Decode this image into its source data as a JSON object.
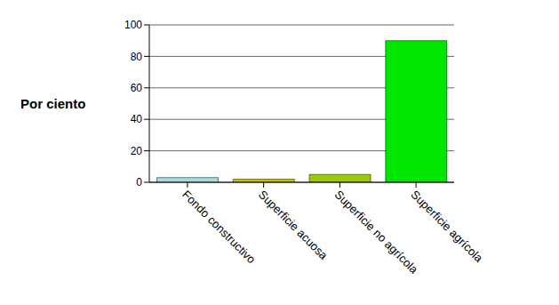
{
  "chart_data": {
    "type": "bar",
    "y_label": "Por ciento",
    "categories": [
      "Fondo constructivo",
      "Superficie acuosa",
      "Superficie no agrícola",
      "Superficie agrícola"
    ],
    "values": [
      3,
      2,
      5,
      90
    ],
    "colors": [
      "#a8dcdc",
      "#c8c000",
      "#99cc00",
      "#00e600"
    ],
    "ylim": [
      0,
      100
    ],
    "yticks": [
      0,
      20,
      40,
      60,
      80,
      100
    ],
    "grid": true
  }
}
